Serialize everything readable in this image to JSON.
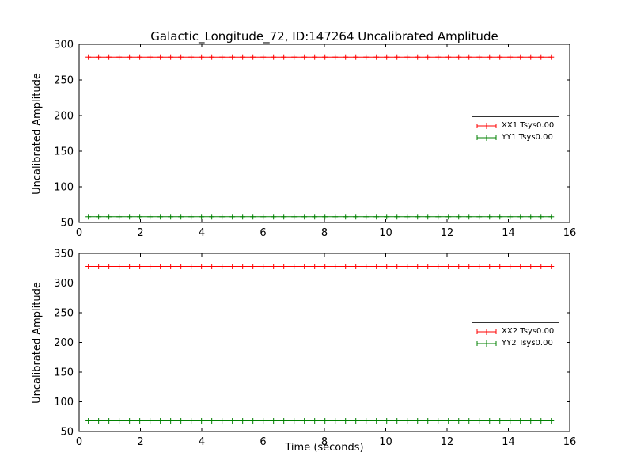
{
  "title": "Galactic_Longitude_72, ID:147264 Uncalibrated Amplitude",
  "xlabel": "Time (seconds)",
  "colors": {
    "background": "#ffffff",
    "axes": "#000000",
    "xx_series": "#ff0000",
    "yy_series": "#008000"
  },
  "chart_data": [
    {
      "type": "line",
      "subplot": "top",
      "ylabel": "Uncalibrated Amplitude",
      "xlim": [
        0,
        16
      ],
      "ylim": [
        50,
        300
      ],
      "xticks": [
        0,
        2,
        4,
        6,
        8,
        10,
        12,
        14,
        16
      ],
      "yticks": [
        50,
        100,
        150,
        200,
        250,
        300
      ],
      "grid": false,
      "x_start": 0.3,
      "x_end": 15.4,
      "n_points": 46,
      "marker": "+",
      "legend_position": "center right",
      "series": [
        {
          "name": "XX1 Tsys0.00",
          "color": "#ff0000",
          "y_value": 282
        },
        {
          "name": "YY1 Tsys0.00",
          "color": "#008000",
          "y_value": 58
        }
      ]
    },
    {
      "type": "line",
      "subplot": "bottom",
      "ylabel": "Uncalibrated Amplitude",
      "xlim": [
        0,
        16
      ],
      "ylim": [
        50,
        350
      ],
      "xticks": [
        0,
        2,
        4,
        6,
        8,
        10,
        12,
        14,
        16
      ],
      "yticks": [
        50,
        100,
        150,
        200,
        250,
        300,
        350
      ],
      "grid": false,
      "x_start": 0.3,
      "x_end": 15.4,
      "n_points": 46,
      "marker": "+",
      "legend_position": "center right",
      "series": [
        {
          "name": "XX2 Tsys0.00",
          "color": "#ff0000",
          "y_value": 328
        },
        {
          "name": "YY2 Tsys0.00",
          "color": "#008000",
          "y_value": 68
        }
      ]
    }
  ]
}
